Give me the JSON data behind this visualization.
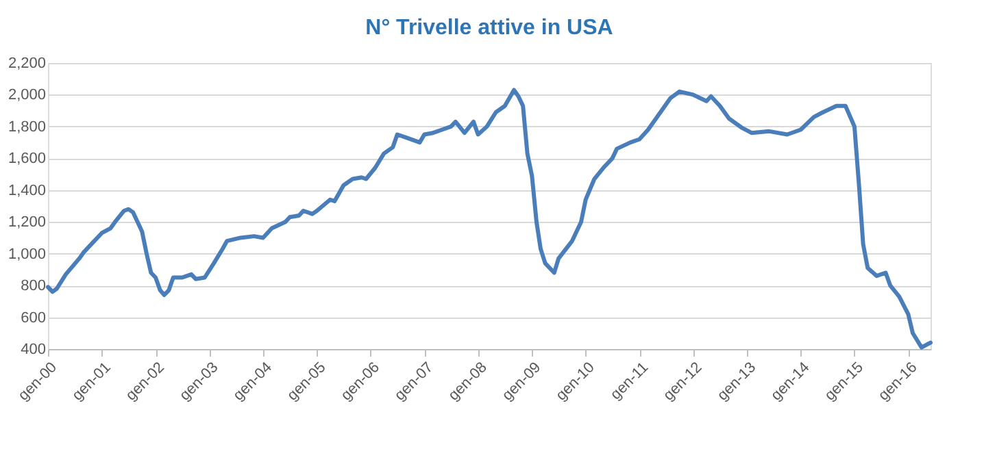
{
  "chart_data": {
    "type": "line",
    "title": "N° Trivelle attive in USA",
    "x": [
      "2000-01",
      "2000-02",
      "2000-03",
      "2000-05",
      "2000-08",
      "2000-09",
      "2000-11",
      "2001-01",
      "2001-03",
      "2001-04",
      "2001-06",
      "2001-07",
      "2001-08",
      "2001-10",
      "2001-11",
      "2001-12",
      "2002-01",
      "2002-02",
      "2002-03",
      "2002-04",
      "2002-05",
      "2002-07",
      "2002-09",
      "2002-10",
      "2002-12",
      "2003-02",
      "2003-04",
      "2003-05",
      "2003-08",
      "2003-11",
      "2004-01",
      "2004-03",
      "2004-06",
      "2004-07",
      "2004-09",
      "2004-10",
      "2004-12",
      "2005-01",
      "2005-04",
      "2005-05",
      "2005-07",
      "2005-09",
      "2005-11",
      "2005-12",
      "2006-02",
      "2006-04",
      "2006-06",
      "2006-07",
      "2006-09",
      "2006-12",
      "2007-01",
      "2007-03",
      "2007-05",
      "2007-07",
      "2007-08",
      "2007-10",
      "2007-12",
      "2008-01",
      "2008-03",
      "2008-05",
      "2008-07",
      "2008-09",
      "2008-10",
      "2008-11",
      "2008-12",
      "2009-01",
      "2009-02",
      "2009-03",
      "2009-04",
      "2009-06",
      "2009-07",
      "2009-10",
      "2009-12",
      "2010-01",
      "2010-03",
      "2010-05",
      "2010-07",
      "2010-08",
      "2010-11",
      "2011-01",
      "2011-03",
      "2011-05",
      "2011-08",
      "2011-10",
      "2012-01",
      "2012-04",
      "2012-05",
      "2012-07",
      "2012-09",
      "2012-12",
      "2013-02",
      "2013-06",
      "2013-10",
      "2014-01",
      "2014-04",
      "2014-06",
      "2014-09",
      "2014-11",
      "2015-01",
      "2015-02",
      "2015-03",
      "2015-04",
      "2015-06",
      "2015-08",
      "2015-09",
      "2015-11",
      "2016-01",
      "2016-02",
      "2016-04",
      "2016-06"
    ],
    "series": [
      {
        "color": "#4a7ebb",
        "values": [
          790,
          760,
          780,
          870,
          970,
          1010,
          1070,
          1130,
          1160,
          1200,
          1270,
          1280,
          1260,
          1140,
          1000,
          880,
          850,
          770,
          740,
          770,
          850,
          850,
          870,
          840,
          850,
          940,
          1030,
          1080,
          1100,
          1110,
          1100,
          1160,
          1200,
          1230,
          1240,
          1270,
          1250,
          1270,
          1340,
          1330,
          1430,
          1470,
          1480,
          1470,
          1540,
          1630,
          1670,
          1750,
          1730,
          1700,
          1750,
          1760,
          1780,
          1800,
          1830,
          1760,
          1830,
          1750,
          1800,
          1890,
          1930,
          2030,
          1990,
          1930,
          1630,
          1490,
          1200,
          1030,
          940,
          880,
          970,
          1080,
          1200,
          1340,
          1470,
          1540,
          1600,
          1660,
          1700,
          1720,
          1780,
          1860,
          1980,
          2020,
          2000,
          1960,
          1990,
          1930,
          1850,
          1790,
          1760,
          1770,
          1750,
          1780,
          1860,
          1890,
          1930,
          1930,
          1800,
          1430,
          1060,
          910,
          860,
          880,
          800,
          730,
          620,
          500,
          410,
          440
        ]
      }
    ],
    "xlim": [
      "2000-01",
      "2016-06"
    ],
    "xticks": [
      {
        "value": "2000-01",
        "label": "gen-00"
      },
      {
        "value": "2001-01",
        "label": "gen-01"
      },
      {
        "value": "2002-01",
        "label": "gen-02"
      },
      {
        "value": "2003-01",
        "label": "gen-03"
      },
      {
        "value": "2004-01",
        "label": "gen-04"
      },
      {
        "value": "2005-01",
        "label": "gen-05"
      },
      {
        "value": "2006-01",
        "label": "gen-06"
      },
      {
        "value": "2007-01",
        "label": "gen-07"
      },
      {
        "value": "2008-01",
        "label": "gen-08"
      },
      {
        "value": "2009-01",
        "label": "gen-09"
      },
      {
        "value": "2010-01",
        "label": "gen-10"
      },
      {
        "value": "2011-01",
        "label": "gen-11"
      },
      {
        "value": "2012-01",
        "label": "gen-12"
      },
      {
        "value": "2013-01",
        "label": "gen-13"
      },
      {
        "value": "2014-01",
        "label": "gen-14"
      },
      {
        "value": "2015-01",
        "label": "gen-15"
      },
      {
        "value": "2016-01",
        "label": "gen-16"
      }
    ],
    "ylim": [
      400,
      2200
    ],
    "yticks": [
      {
        "value": 400,
        "label": "400"
      },
      {
        "value": 600,
        "label": "600"
      },
      {
        "value": 800,
        "label": "800"
      },
      {
        "value": 1000,
        "label": "1,000"
      },
      {
        "value": 1200,
        "label": "1,200"
      },
      {
        "value": 1400,
        "label": "1,400"
      },
      {
        "value": 1600,
        "label": "1,600"
      },
      {
        "value": 1800,
        "label": "1,800"
      },
      {
        "value": 2000,
        "label": "2,000"
      },
      {
        "value": 2200,
        "label": "2,200"
      }
    ],
    "grid": "y",
    "marker": "none",
    "line_style": "solid"
  }
}
